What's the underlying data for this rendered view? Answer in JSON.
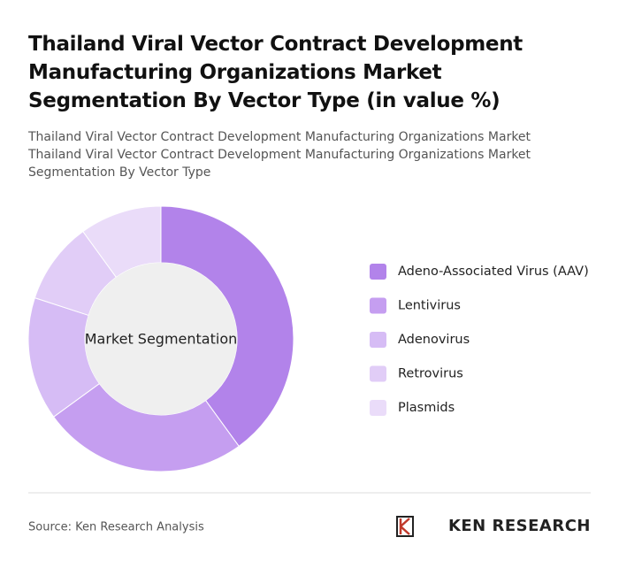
{
  "chart_data": {
    "type": "donut",
    "title": "Thailand Viral Vector Contract Development Manufacturing Organizations Market Segmentation By Vector Type (in value %)",
    "subtitle": "Thailand Viral Vector Contract Development Manufacturing Organizations Market Thailand Viral Vector Contract Development Manufacturing Organizations Market Segmentation By Vector Type",
    "center_label": "Market Segmentation",
    "categories": [
      "Adeno-Associated Virus (AAV)",
      "Lentivirus",
      "Adenovirus",
      "Retrovirus",
      "Plasmids"
    ],
    "values": [
      40,
      25,
      15,
      10,
      10
    ],
    "colors": [
      "#b283ea",
      "#c59ef0",
      "#d6bcf5",
      "#e1cdf7",
      "#eadcf9"
    ],
    "source": "Source: Ken Research Analysis",
    "brand": "KEN RESEARCH"
  }
}
